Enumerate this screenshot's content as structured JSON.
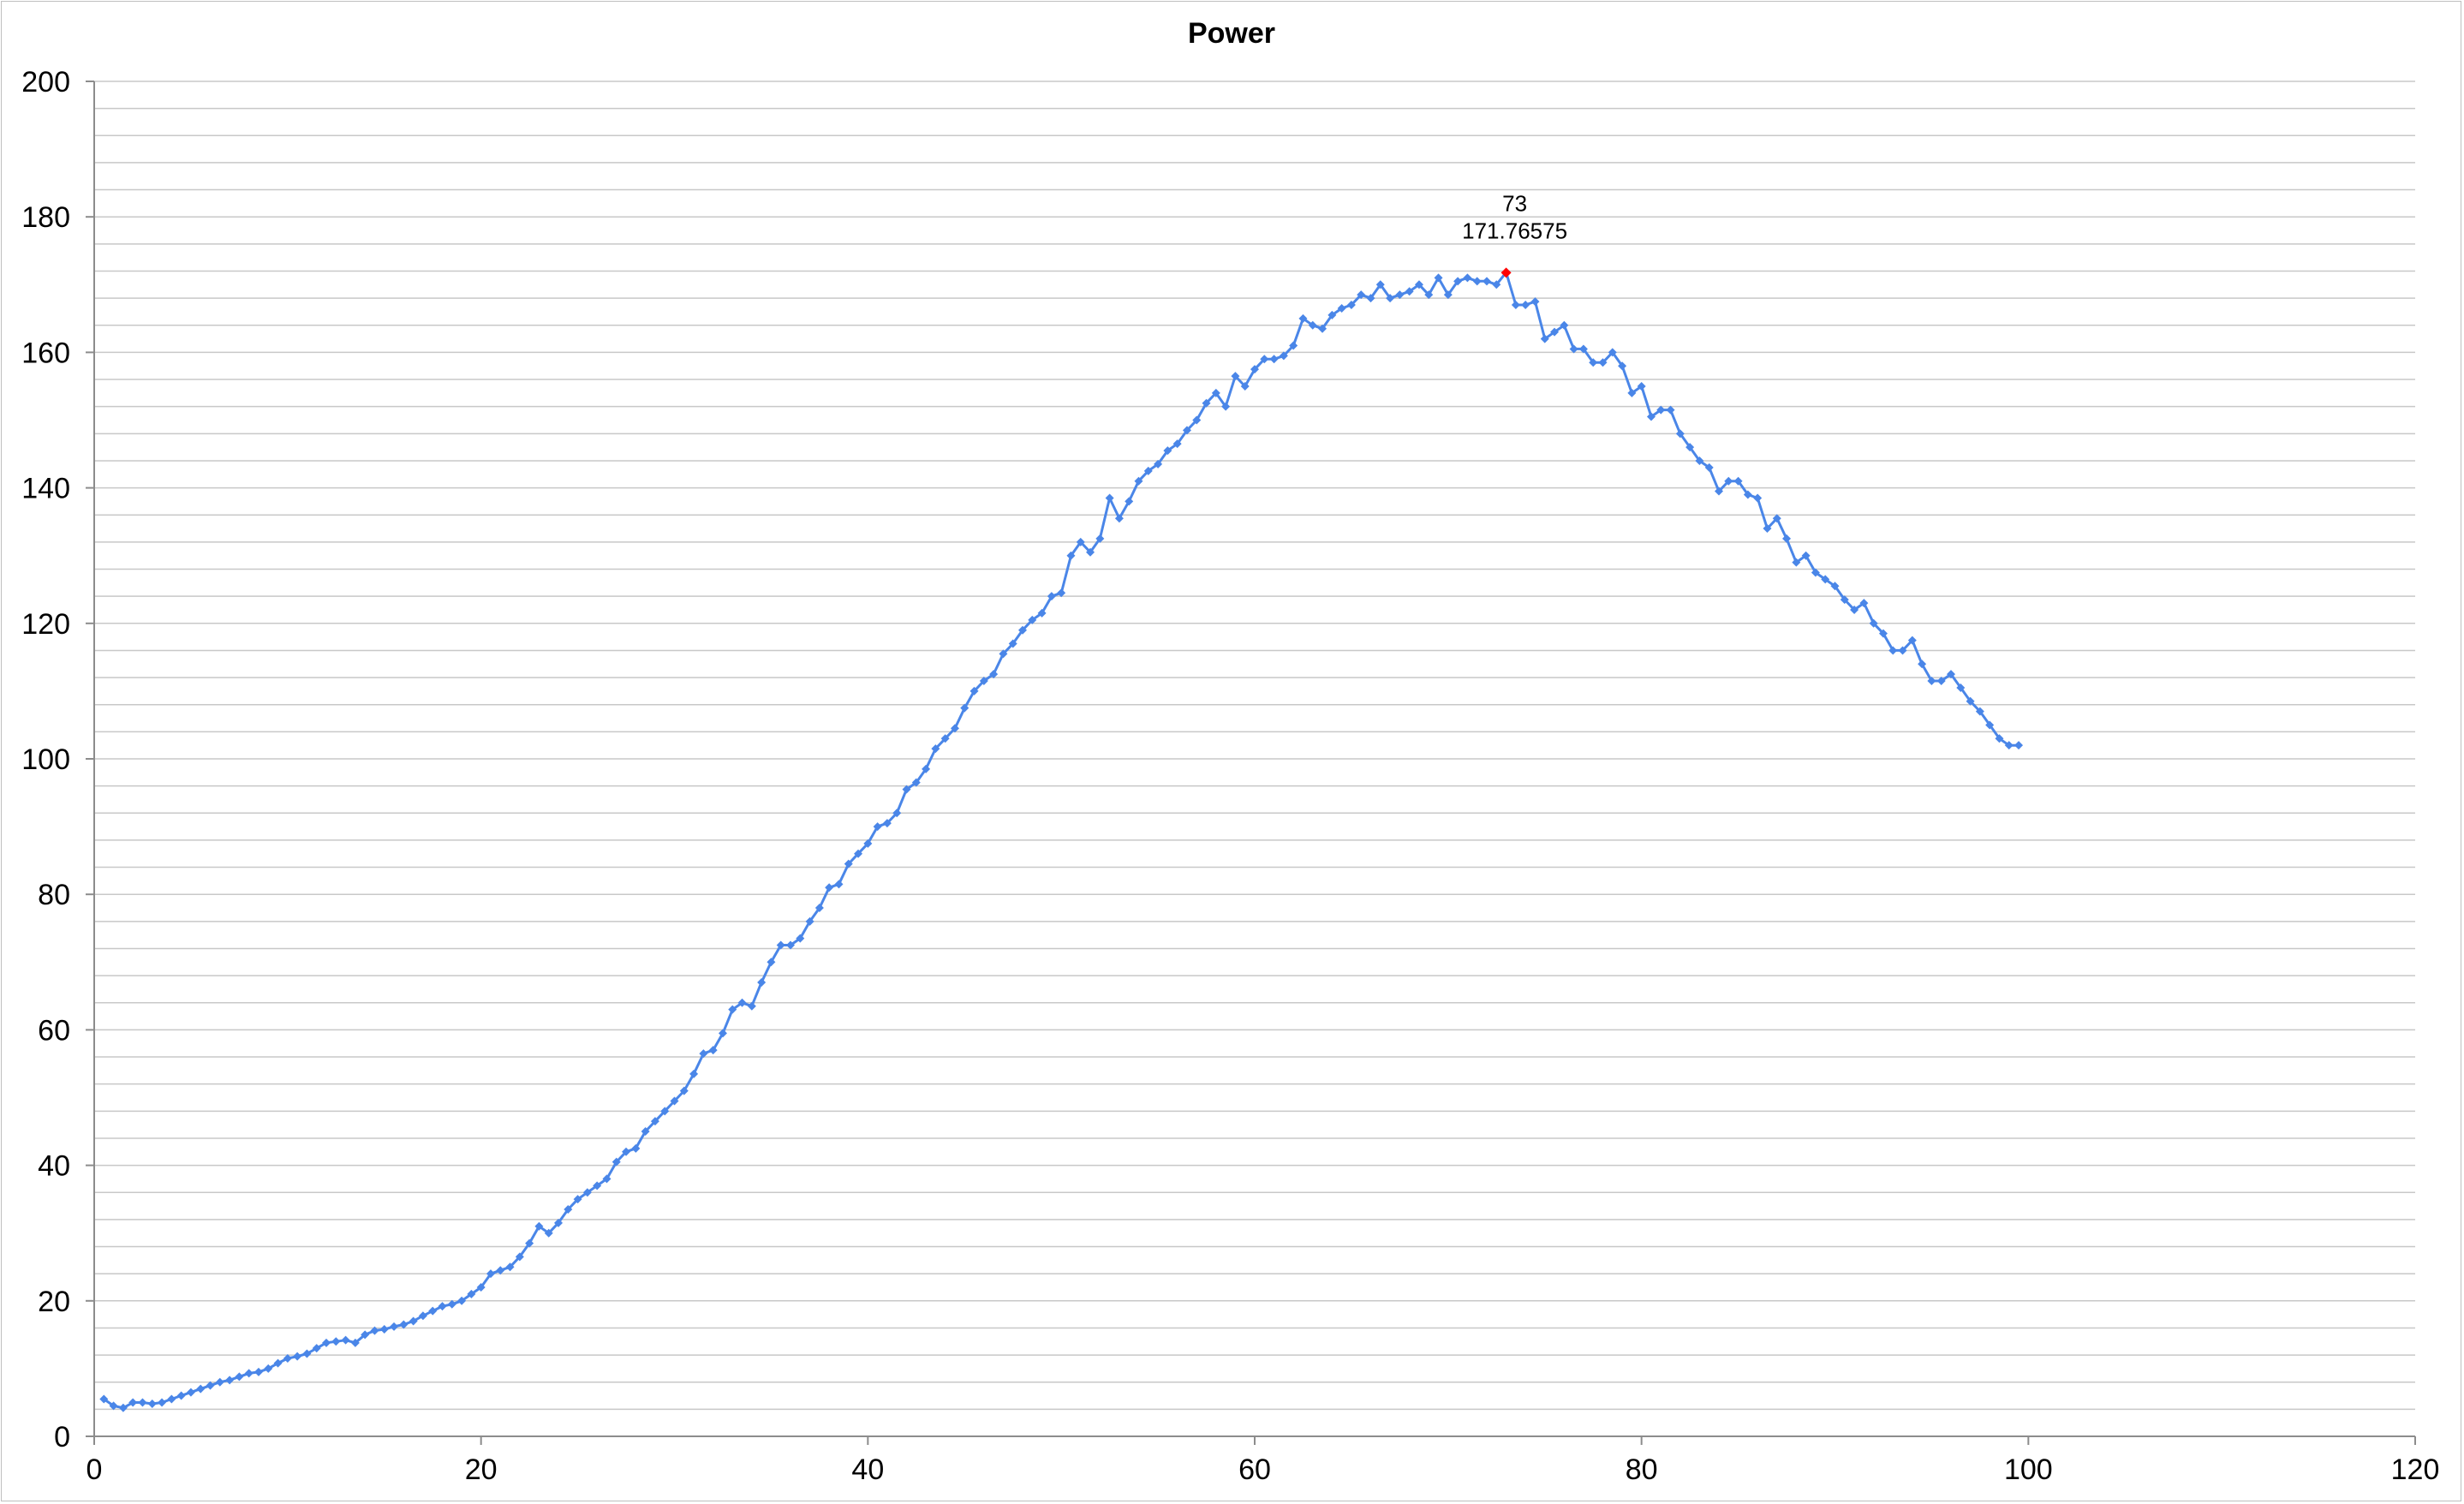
{
  "chart_data": {
    "type": "line",
    "title": "Power",
    "xlabel": "",
    "ylabel": "",
    "xlim": [
      0,
      120
    ],
    "ylim": [
      0,
      200
    ],
    "x_ticks": [
      0,
      20,
      40,
      60,
      80,
      100,
      120
    ],
    "y_ticks": [
      0,
      20,
      40,
      60,
      80,
      100,
      120,
      140,
      160,
      180,
      200
    ],
    "grid": true,
    "legend": "none",
    "series_color": "#4a86e8",
    "highlight_color": "#ff0000",
    "series": [
      {
        "x": [
          0.5,
          1.0,
          1.5,
          2.0,
          2.5,
          3.0,
          3.5,
          4.0,
          4.5,
          5.0,
          5.5,
          6.0,
          6.5,
          7.0,
          7.5,
          8.0,
          8.5,
          9.0,
          9.5,
          10.0,
          10.5,
          11.0,
          11.5,
          12.0,
          12.5,
          13.0,
          13.5,
          14.0,
          14.5,
          15.0,
          15.5,
          16.0,
          16.5,
          17.0,
          17.5,
          18.0,
          18.5,
          19.0,
          19.5,
          20.0,
          20.5,
          21.0,
          21.5,
          22.0,
          22.5,
          23.0,
          23.5,
          24.0,
          24.5,
          25.0,
          25.5,
          26.0,
          26.5,
          27.0,
          27.5,
          28.0,
          28.5,
          29.0,
          29.5,
          30.0,
          30.5,
          31.0,
          31.5,
          32.0,
          32.5,
          33.0,
          33.5,
          34.0,
          34.5,
          35.0,
          35.5,
          36.0,
          36.5,
          37.0,
          37.5,
          38.0,
          38.5,
          39.0,
          39.5,
          40.0,
          40.5,
          41.0,
          41.5,
          42.0,
          42.5,
          43.0,
          43.5,
          44.0,
          44.5,
          45.0,
          45.5,
          46.0,
          46.5,
          47.0,
          47.5,
          48.0,
          48.5,
          49.0,
          49.5,
          50.0,
          50.5,
          51.0,
          51.5,
          52.0,
          52.5,
          53.0,
          53.5,
          54.0,
          54.5,
          55.0,
          55.5,
          56.0,
          56.5,
          57.0,
          57.5,
          58.0,
          58.5,
          59.0,
          59.5,
          60.0,
          60.5,
          61.0,
          61.5,
          62.0,
          62.5,
          63.0,
          63.5,
          64.0,
          64.5,
          65.0,
          65.5,
          66.0,
          66.5,
          67.0,
          67.5,
          68.0,
          68.5,
          69.0,
          69.5,
          70.0,
          70.5,
          71.0,
          71.5,
          72.0,
          72.5,
          73.0,
          73.5,
          74.0,
          74.5,
          75.0,
          75.5,
          76.0,
          76.5,
          77.0,
          77.5,
          78.0,
          78.5,
          79.0,
          79.5,
          80.0,
          80.5,
          81.0,
          81.5,
          82.0,
          82.5,
          83.0,
          83.5,
          84.0,
          84.5,
          85.0,
          85.5,
          86.0,
          86.5,
          87.0,
          87.5,
          88.0,
          88.5,
          89.0,
          89.5,
          90.0,
          90.5,
          91.0,
          91.5,
          92.0,
          92.5,
          93.0,
          93.5,
          94.0,
          94.5,
          95.0,
          95.5,
          96.0,
          96.5,
          97.0,
          97.5,
          98.0,
          98.5,
          99.0,
          99.5
        ],
        "y": [
          5.5,
          4.5,
          4.2,
          5.0,
          5.0,
          4.8,
          5.0,
          5.5,
          6.0,
          6.5,
          7.0,
          7.5,
          8.0,
          8.3,
          8.8,
          9.3,
          9.5,
          10.0,
          10.8,
          11.5,
          11.8,
          12.2,
          13.0,
          13.8,
          14.0,
          14.2,
          13.8,
          15.0,
          15.6,
          15.8,
          16.2,
          16.5,
          17.0,
          17.8,
          18.5,
          19.2,
          19.5,
          20.0,
          21.0,
          22.0,
          24.0,
          24.5,
          25.0,
          26.5,
          28.5,
          31.0,
          30.0,
          31.5,
          33.5,
          35.0,
          36.0,
          37.0,
          38.0,
          40.5,
          42.0,
          42.5,
          45.0,
          46.5,
          48.0,
          49.5,
          51.0,
          53.5,
          56.5,
          57.0,
          59.5,
          63.0,
          64.0,
          63.5,
          67.0,
          70.0,
          72.5,
          72.5,
          73.5,
          76.0,
          78.0,
          81.0,
          81.5,
          84.5,
          86.0,
          87.5,
          90.0,
          90.5,
          92.0,
          95.5,
          96.5,
          98.5,
          101.5,
          103.0,
          104.5,
          107.5,
          110.0,
          111.5,
          112.5,
          115.5,
          117.0,
          119.0,
          120.5,
          121.5,
          124.0,
          124.5,
          130.0,
          132.0,
          130.5,
          132.5,
          138.5,
          135.5,
          138.0,
          141.0,
          142.5,
          143.5,
          145.5,
          146.5,
          148.5,
          150.0,
          152.5,
          154.0,
          152.0,
          156.5,
          155.0,
          157.5,
          159.0,
          159.0,
          159.5,
          161.0,
          165.0,
          164.0,
          163.5,
          165.5,
          166.5,
          167.0,
          168.5,
          168.0,
          170.0,
          168.0,
          168.5,
          169.0,
          170.0,
          168.5,
          171.0,
          168.5,
          170.5,
          171.0,
          170.5,
          170.5,
          170.0,
          171.8,
          167.0,
          167.0,
          167.5,
          162.0,
          163.0,
          164.0,
          160.5,
          160.5,
          158.5,
          158.5,
          160.0,
          158.0,
          154.0,
          155.0,
          150.5,
          151.5,
          151.5,
          148.0,
          146.0,
          144.0,
          143.0,
          139.5,
          141.0,
          141.0,
          139.0,
          138.5,
          134.0,
          135.5,
          132.5,
          129.0,
          130.0,
          127.5,
          126.5,
          125.5,
          123.5,
          122.0,
          123.0,
          120.0,
          118.5,
          116.0,
          116.0,
          117.5,
          114.0,
          111.5,
          111.5,
          112.5,
          110.5,
          108.5,
          107.0,
          105.0,
          103.0,
          102.0,
          102.0
        ]
      }
    ],
    "annotation": {
      "x_label": "73",
      "y_label": "171.76575",
      "x": 73,
      "y": 171.76575
    }
  }
}
